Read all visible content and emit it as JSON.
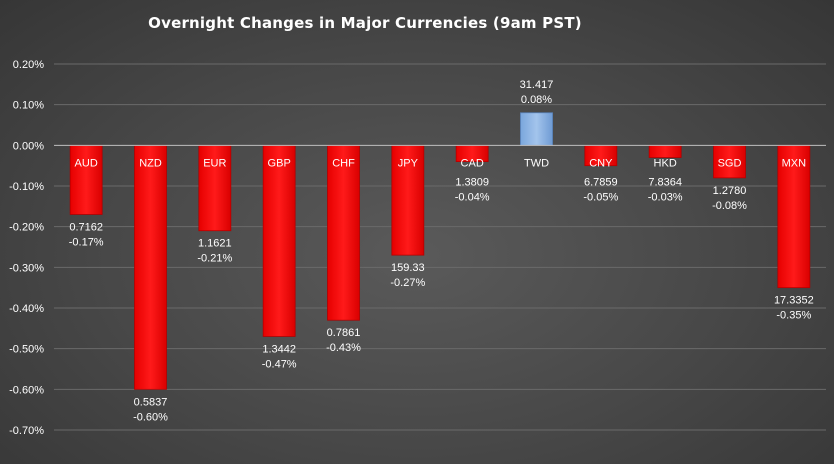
{
  "title": "Overnight Changes in Major Currencies (9am PST)",
  "colors": {
    "negative": "#ff0000",
    "positive": "#8db4e2",
    "gridline": "#6a6a6a",
    "axis": "#bfbfbf"
  },
  "chart_data": {
    "type": "bar",
    "title": "Overnight Changes in Major Currencies (9am PST)",
    "xlabel": "",
    "ylabel": "",
    "ylim": [
      -0.7,
      0.2
    ],
    "y_ticks": [
      0.2,
      0.1,
      0.0,
      -0.1,
      -0.2,
      -0.3,
      -0.4,
      -0.5,
      -0.6,
      -0.7
    ],
    "y_tick_labels": [
      "0.20%",
      "0.10%",
      "0.00%",
      "-0.10%",
      "-0.20%",
      "-0.30%",
      "-0.40%",
      "-0.50%",
      "-0.60%",
      "-0.70%"
    ],
    "grid": true,
    "legend": "none",
    "categories": [
      "AUD",
      "NZD",
      "EUR",
      "GBP",
      "CHF",
      "JPY",
      "CAD",
      "TWD",
      "CNY",
      "HKD",
      "SGD",
      "MXN"
    ],
    "values": [
      -0.17,
      -0.6,
      -0.21,
      -0.47,
      -0.43,
      -0.27,
      -0.04,
      0.08,
      -0.05,
      -0.03,
      -0.08,
      -0.35
    ],
    "value_labels": [
      "-0.17%",
      "-0.60%",
      "-0.21%",
      "-0.47%",
      "-0.43%",
      "-0.27%",
      "-0.04%",
      "0.08%",
      "-0.05%",
      "-0.03%",
      "-0.08%",
      "-0.35%"
    ],
    "rates": [
      "0.7162",
      "0.5837",
      "1.1621",
      "1.3442",
      "0.7861",
      "159.33",
      "1.3809",
      "31.417",
      "6.7859",
      "7.8364",
      "1.2780",
      "17.3352"
    ]
  }
}
